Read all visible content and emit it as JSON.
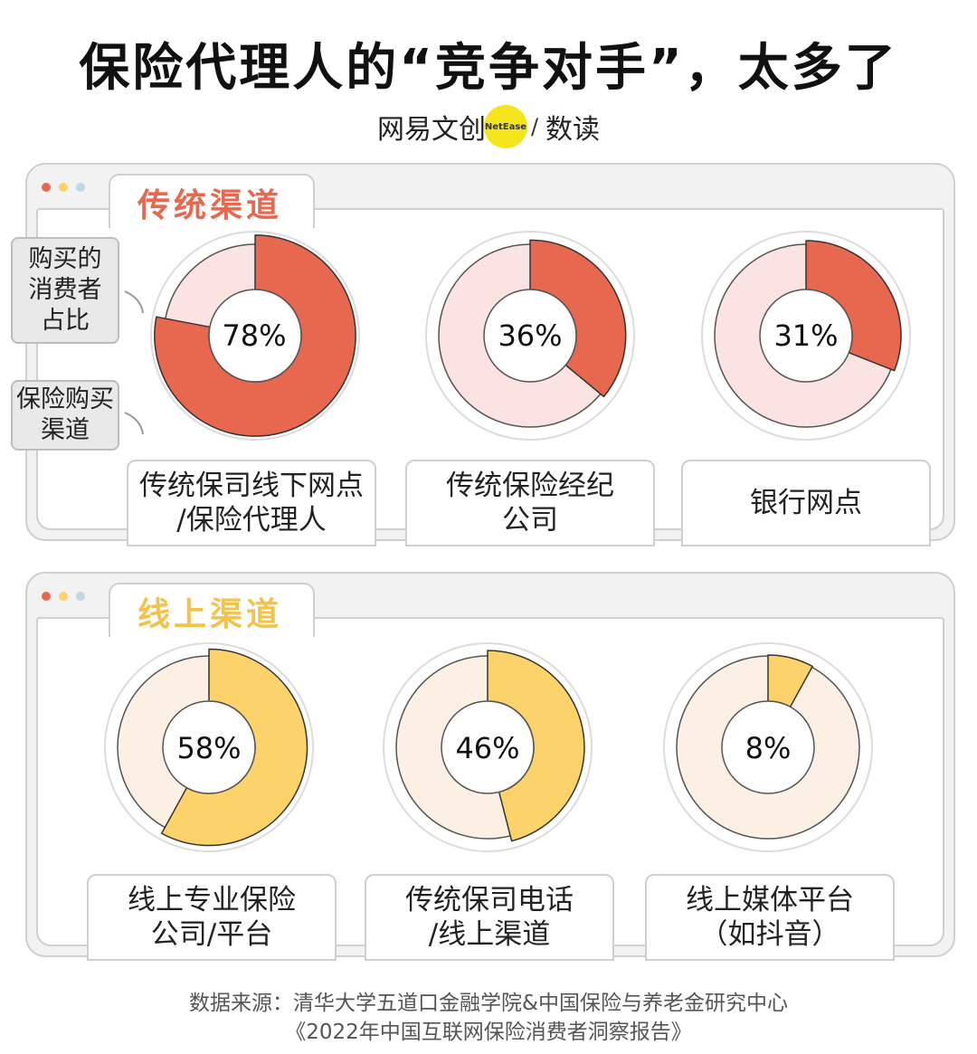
{
  "title": "保险代理人的“竞争对手”，太多了",
  "brand": {
    "left": "网易文创",
    "badge": "NetEase",
    "sep": "/",
    "right": "数读"
  },
  "legend_notes": {
    "share": [
      "购买的",
      "消费者",
      "占比"
    ],
    "channel": [
      "保险购买",
      "渠道"
    ]
  },
  "colors": {
    "traditional": "#e8674f",
    "traditional_light": "#fbe3e2",
    "online": "#fcd36a",
    "online_light": "#fbf0e3",
    "dot_red": "#e8674f",
    "dot_yellow": "#fcd36a",
    "dot_blue": "#bfd8e2"
  },
  "chart_data": [
    {
      "type": "pie",
      "title": "传统渠道",
      "unit": "%",
      "items": [
        {
          "label_lines": [
            "传统保司线下网点",
            "/保险代理人"
          ],
          "value": 78,
          "display": "78%"
        },
        {
          "label_lines": [
            "传统保险经纪",
            "公司"
          ],
          "value": 36,
          "display": "36%"
        },
        {
          "label_lines": [
            "银行网点"
          ],
          "value": 31,
          "display": "31%"
        }
      ]
    },
    {
      "type": "pie",
      "title": "线上渠道",
      "unit": "%",
      "items": [
        {
          "label_lines": [
            "线上专业保险",
            "公司/平台"
          ],
          "value": 58,
          "display": "58%"
        },
        {
          "label_lines": [
            "传统保司电话",
            "/线上渠道"
          ],
          "value": 46,
          "display": "46%"
        },
        {
          "label_lines": [
            "线上媒体平台",
            "（如抖音）"
          ],
          "value": 8,
          "display": "8%"
        }
      ]
    }
  ],
  "source": {
    "line1": "数据来源：清华大学五道口金融学院&中国保险与养老金研究中心",
    "line2": "《2022年中国互联网保险消费者洞察报告》"
  }
}
